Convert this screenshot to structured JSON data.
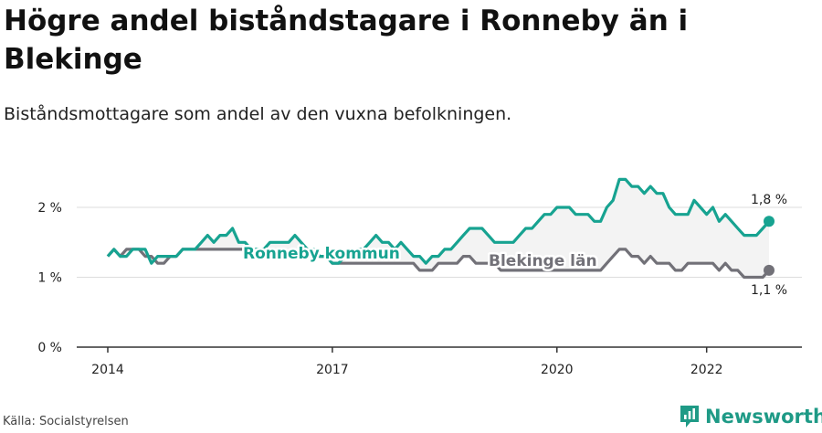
{
  "header": {
    "title": "Högre andel biståndstagare i Ronneby än i Blekinge",
    "subtitle": "Biståndsmottagare som andel av den vuxna befolkningen."
  },
  "footer": {
    "source": "Källa: Socialstyrelsen",
    "brand": "Newsworthy"
  },
  "colors": {
    "ronneby": "#17a391",
    "blekinge": "#727178",
    "band": "#f3f3f3",
    "axis": "#333333",
    "grid": "#dcdcdc",
    "brand": "#1e9a86"
  },
  "icons": {
    "brand": "newsworthy-bar-chart-icon"
  },
  "chart_data": {
    "type": "line",
    "x_start": "2014-01",
    "x_frequency": "monthly",
    "x_ticks": [
      "2014",
      "2017",
      "2020",
      "2022"
    ],
    "y_ticks": [
      "0 %",
      "1 %",
      "2 %"
    ],
    "ylim": [
      0,
      2.5
    ],
    "series": [
      {
        "name": "Ronneby kommun",
        "color": "#17a391",
        "end_label": "1,8 %",
        "values": [
          1.3,
          1.4,
          1.3,
          1.3,
          1.4,
          1.4,
          1.4,
          1.2,
          1.3,
          1.3,
          1.3,
          1.3,
          1.4,
          1.4,
          1.4,
          1.5,
          1.6,
          1.5,
          1.6,
          1.6,
          1.7,
          1.5,
          1.5,
          1.4,
          1.4,
          1.4,
          1.5,
          1.5,
          1.5,
          1.5,
          1.6,
          1.5,
          1.4,
          1.4,
          1.3,
          1.3,
          1.2,
          1.2,
          1.3,
          1.3,
          1.4,
          1.4,
          1.5,
          1.6,
          1.5,
          1.5,
          1.4,
          1.5,
          1.4,
          1.3,
          1.3,
          1.2,
          1.3,
          1.3,
          1.4,
          1.4,
          1.5,
          1.6,
          1.7,
          1.7,
          1.7,
          1.6,
          1.5,
          1.5,
          1.5,
          1.5,
          1.6,
          1.7,
          1.7,
          1.8,
          1.9,
          1.9,
          2.0,
          2.0,
          2.0,
          1.9,
          1.9,
          1.9,
          1.8,
          1.8,
          2.0,
          2.1,
          2.4,
          2.4,
          2.3,
          2.3,
          2.2,
          2.3,
          2.2,
          2.2,
          2.0,
          1.9,
          1.9,
          1.9,
          2.1,
          2.0,
          1.9,
          2.0,
          1.8,
          1.9,
          1.8,
          1.7,
          1.6,
          1.6,
          1.6,
          1.7,
          1.8
        ]
      },
      {
        "name": "Blekinge län",
        "color": "#727178",
        "end_label": "1,1 %",
        "values": [
          1.3,
          1.4,
          1.3,
          1.4,
          1.4,
          1.4,
          1.3,
          1.3,
          1.2,
          1.2,
          1.3,
          1.3,
          1.4,
          1.4,
          1.4,
          1.4,
          1.4,
          1.4,
          1.4,
          1.4,
          1.4,
          1.4,
          1.4,
          1.3,
          1.3,
          1.3,
          1.3,
          1.3,
          1.3,
          1.3,
          1.3,
          1.3,
          1.3,
          1.3,
          1.3,
          1.3,
          1.2,
          1.2,
          1.2,
          1.2,
          1.2,
          1.2,
          1.2,
          1.2,
          1.2,
          1.2,
          1.2,
          1.2,
          1.2,
          1.2,
          1.1,
          1.1,
          1.1,
          1.2,
          1.2,
          1.2,
          1.2,
          1.3,
          1.3,
          1.2,
          1.2,
          1.2,
          1.2,
          1.1,
          1.1,
          1.1,
          1.1,
          1.1,
          1.1,
          1.1,
          1.1,
          1.1,
          1.1,
          1.1,
          1.1,
          1.1,
          1.1,
          1.1,
          1.1,
          1.1,
          1.2,
          1.3,
          1.4,
          1.4,
          1.3,
          1.3,
          1.2,
          1.3,
          1.2,
          1.2,
          1.2,
          1.1,
          1.1,
          1.2,
          1.2,
          1.2,
          1.2,
          1.2,
          1.1,
          1.2,
          1.1,
          1.1,
          1.0,
          1.0,
          1.0,
          1.0,
          1.1
        ]
      }
    ]
  }
}
